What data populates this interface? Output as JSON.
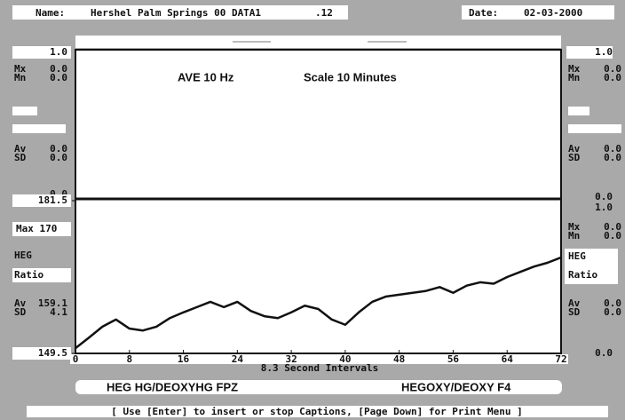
{
  "header": {
    "name_label": "Name:",
    "name": "Hershel Palm Springs 00 DATA1",
    "suffix": ".12",
    "date_label": "Date:",
    "date": "02-03-2000"
  },
  "top_panel": {
    "title": "AVE 10 Hz",
    "scale": "Scale 10 Minutes",
    "left_top": "1.0",
    "left_bottom": "0.0",
    "right_top": "1.0",
    "right_bottom": "0.0",
    "left_stats": [
      [
        "Mx",
        "0.0"
      ],
      [
        "Mn",
        "0.0"
      ],
      [
        "Av",
        "0.0"
      ],
      [
        "SD",
        "0.0"
      ]
    ],
    "right_stats": [
      [
        "Mx",
        "0.0"
      ],
      [
        "Mn",
        "0.0"
      ],
      [
        "Av",
        "0.0"
      ],
      [
        "SD",
        "0.0"
      ]
    ]
  },
  "left_panel": {
    "max": "Max 170",
    "heg": "HEG",
    "ratio": "Ratio",
    "stats": [
      [
        "Av",
        "159.1"
      ],
      [
        "SD",
        "4.1"
      ]
    ]
  },
  "right_panel": {
    "top": "1.0",
    "heg": "HEG",
    "ratio": "Ratio",
    "stats": [
      [
        "Mx",
        "0.0"
      ],
      [
        "Mn",
        "0.0"
      ],
      [
        "Av",
        "0.0"
      ],
      [
        "SD",
        "0.0"
      ]
    ],
    "bottom": "0.0"
  },
  "chart_data": {
    "type": "line",
    "xlabel": "8.3 Second Intervals",
    "x": [
      0,
      2,
      4,
      6,
      8,
      10,
      12,
      14,
      16,
      18,
      20,
      22,
      24,
      26,
      28,
      30,
      32,
      34,
      36,
      38,
      40,
      42,
      44,
      46,
      48,
      50,
      52,
      54,
      56,
      58,
      60,
      62,
      64,
      66,
      68,
      70,
      72
    ],
    "series": [
      {
        "name": "HEG HG/DEOXYHG FPZ",
        "color": "#111111",
        "values": [
          150.6,
          152.8,
          155.1,
          156.6,
          154.7,
          154.3,
          155.1,
          156.9,
          158.1,
          159.2,
          160.3,
          159.2,
          160.3,
          158.4,
          157.3,
          156.9,
          158.1,
          159.5,
          158.8,
          156.6,
          155.5,
          158.1,
          160.3,
          161.4,
          161.8,
          162.2,
          162.6,
          163.4,
          162.2,
          163.7,
          164.4,
          164.1,
          165.5,
          166.6,
          167.7,
          168.5,
          169.6
        ]
      }
    ],
    "second_channel": "HEGOXY/DEOXY F4",
    "xlim": [
      0,
      72
    ],
    "xticks": [
      0,
      8,
      16,
      24,
      32,
      40,
      48,
      56,
      64,
      72
    ],
    "ylim": [
      149.5,
      181.5
    ],
    "yticks": [
      149.5,
      181.5
    ]
  },
  "footer": "[ Use [Enter] to insert or stop Captions, [Page Down] for Print Menu ]"
}
